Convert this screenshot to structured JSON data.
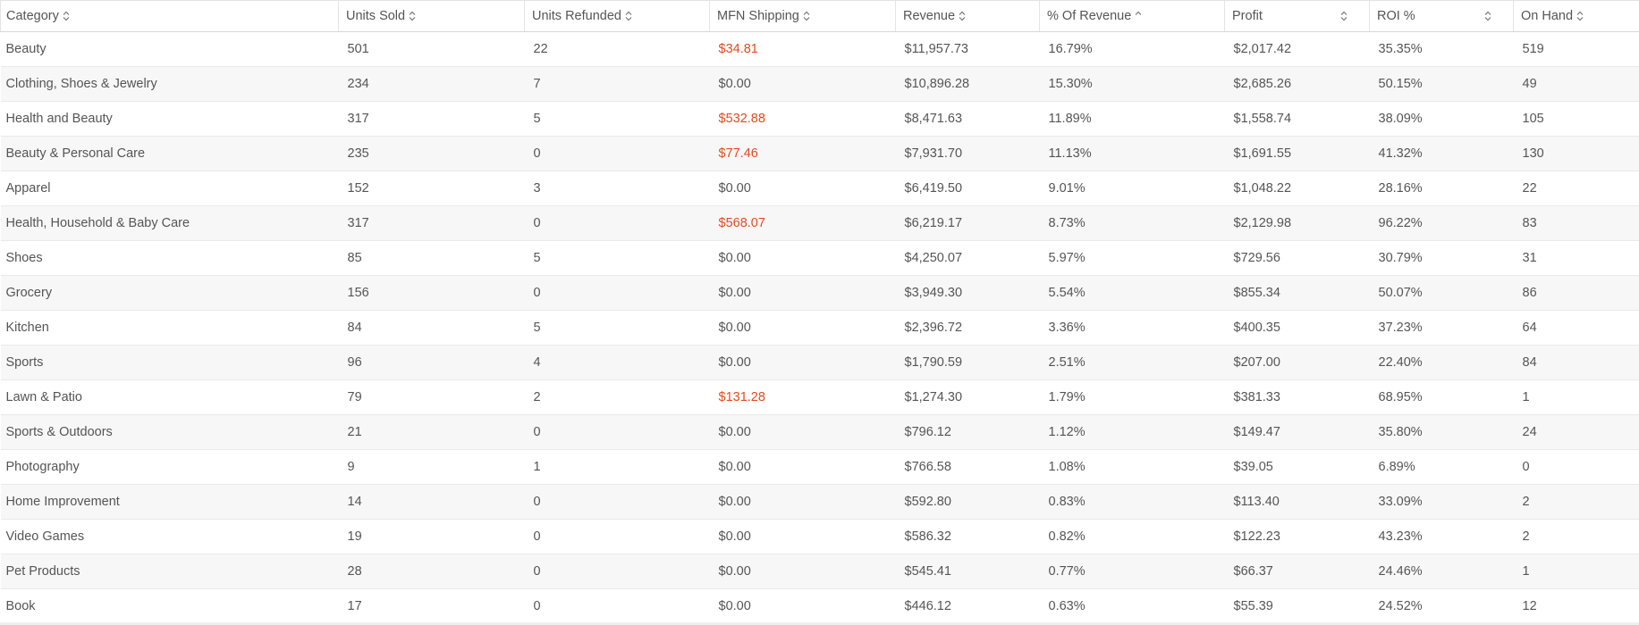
{
  "table": {
    "columns": [
      {
        "key": "category",
        "label": "Category",
        "sort": "both"
      },
      {
        "key": "units_sold",
        "label": "Units Sold",
        "sort": "both"
      },
      {
        "key": "units_refunded",
        "label": "Units Refunded",
        "sort": "both"
      },
      {
        "key": "mfn_shipping",
        "label": "MFN Shipping",
        "sort": "both"
      },
      {
        "key": "revenue",
        "label": "Revenue",
        "sort": "both"
      },
      {
        "key": "pct_revenue",
        "label": "% Of Revenue",
        "sort": "up"
      },
      {
        "key": "profit",
        "label": "Profit",
        "sort": "both"
      },
      {
        "key": "roi",
        "label": "ROI %",
        "sort": "both"
      },
      {
        "key": "on_hand",
        "label": "On Hand",
        "sort": "both"
      }
    ],
    "highlight_color": "#e34a1f",
    "rows": [
      {
        "category": "Beauty",
        "units_sold": "501",
        "units_refunded": "22",
        "mfn_shipping": "$34.81",
        "mfn_highlight": true,
        "revenue": "$11,957.73",
        "pct_revenue": "16.79%",
        "profit": "$2,017.42",
        "roi": "35.35%",
        "on_hand": "519"
      },
      {
        "category": "Clothing, Shoes & Jewelry",
        "units_sold": "234",
        "units_refunded": "7",
        "mfn_shipping": "$0.00",
        "mfn_highlight": false,
        "revenue": "$10,896.28",
        "pct_revenue": "15.30%",
        "profit": "$2,685.26",
        "roi": "50.15%",
        "on_hand": "49"
      },
      {
        "category": "Health and Beauty",
        "units_sold": "317",
        "units_refunded": "5",
        "mfn_shipping": "$532.88",
        "mfn_highlight": true,
        "revenue": "$8,471.63",
        "pct_revenue": "11.89%",
        "profit": "$1,558.74",
        "roi": "38.09%",
        "on_hand": "105"
      },
      {
        "category": "Beauty & Personal Care",
        "units_sold": "235",
        "units_refunded": "0",
        "mfn_shipping": "$77.46",
        "mfn_highlight": true,
        "revenue": "$7,931.70",
        "pct_revenue": "11.13%",
        "profit": "$1,691.55",
        "roi": "41.32%",
        "on_hand": "130"
      },
      {
        "category": "Apparel",
        "units_sold": "152",
        "units_refunded": "3",
        "mfn_shipping": "$0.00",
        "mfn_highlight": false,
        "revenue": "$6,419.50",
        "pct_revenue": "9.01%",
        "profit": "$1,048.22",
        "roi": "28.16%",
        "on_hand": "22"
      },
      {
        "category": "Health, Household & Baby Care",
        "units_sold": "317",
        "units_refunded": "0",
        "mfn_shipping": "$568.07",
        "mfn_highlight": true,
        "revenue": "$6,219.17",
        "pct_revenue": "8.73%",
        "profit": "$2,129.98",
        "roi": "96.22%",
        "on_hand": "83"
      },
      {
        "category": "Shoes",
        "units_sold": "85",
        "units_refunded": "5",
        "mfn_shipping": "$0.00",
        "mfn_highlight": false,
        "revenue": "$4,250.07",
        "pct_revenue": "5.97%",
        "profit": "$729.56",
        "roi": "30.79%",
        "on_hand": "31"
      },
      {
        "category": "Grocery",
        "units_sold": "156",
        "units_refunded": "0",
        "mfn_shipping": "$0.00",
        "mfn_highlight": false,
        "revenue": "$3,949.30",
        "pct_revenue": "5.54%",
        "profit": "$855.34",
        "roi": "50.07%",
        "on_hand": "86"
      },
      {
        "category": "Kitchen",
        "units_sold": "84",
        "units_refunded": "5",
        "mfn_shipping": "$0.00",
        "mfn_highlight": false,
        "revenue": "$2,396.72",
        "pct_revenue": "3.36%",
        "profit": "$400.35",
        "roi": "37.23%",
        "on_hand": "64"
      },
      {
        "category": "Sports",
        "units_sold": "96",
        "units_refunded": "4",
        "mfn_shipping": "$0.00",
        "mfn_highlight": false,
        "revenue": "$1,790.59",
        "pct_revenue": "2.51%",
        "profit": "$207.00",
        "roi": "22.40%",
        "on_hand": "84"
      },
      {
        "category": "Lawn & Patio",
        "units_sold": "79",
        "units_refunded": "2",
        "mfn_shipping": "$131.28",
        "mfn_highlight": true,
        "revenue": "$1,274.30",
        "pct_revenue": "1.79%",
        "profit": "$381.33",
        "roi": "68.95%",
        "on_hand": "1"
      },
      {
        "category": "Sports & Outdoors",
        "units_sold": "21",
        "units_refunded": "0",
        "mfn_shipping": "$0.00",
        "mfn_highlight": false,
        "revenue": "$796.12",
        "pct_revenue": "1.12%",
        "profit": "$149.47",
        "roi": "35.80%",
        "on_hand": "24"
      },
      {
        "category": "Photography",
        "units_sold": "9",
        "units_refunded": "1",
        "mfn_shipping": "$0.00",
        "mfn_highlight": false,
        "revenue": "$766.58",
        "pct_revenue": "1.08%",
        "profit": "$39.05",
        "roi": "6.89%",
        "on_hand": "0"
      },
      {
        "category": "Home Improvement",
        "units_sold": "14",
        "units_refunded": "0",
        "mfn_shipping": "$0.00",
        "mfn_highlight": false,
        "revenue": "$592.80",
        "pct_revenue": "0.83%",
        "profit": "$113.40",
        "roi": "33.09%",
        "on_hand": "2"
      },
      {
        "category": "Video Games",
        "units_sold": "19",
        "units_refunded": "0",
        "mfn_shipping": "$0.00",
        "mfn_highlight": false,
        "revenue": "$586.32",
        "pct_revenue": "0.82%",
        "profit": "$122.23",
        "roi": "43.23%",
        "on_hand": "2"
      },
      {
        "category": "Pet Products",
        "units_sold": "28",
        "units_refunded": "0",
        "mfn_shipping": "$0.00",
        "mfn_highlight": false,
        "revenue": "$545.41",
        "pct_revenue": "0.77%",
        "profit": "$66.37",
        "roi": "24.46%",
        "on_hand": "1"
      },
      {
        "category": "Book",
        "units_sold": "17",
        "units_refunded": "0",
        "mfn_shipping": "$0.00",
        "mfn_highlight": false,
        "revenue": "$446.12",
        "pct_revenue": "0.63%",
        "profit": "$55.39",
        "roi": "24.52%",
        "on_hand": "12"
      }
    ]
  }
}
